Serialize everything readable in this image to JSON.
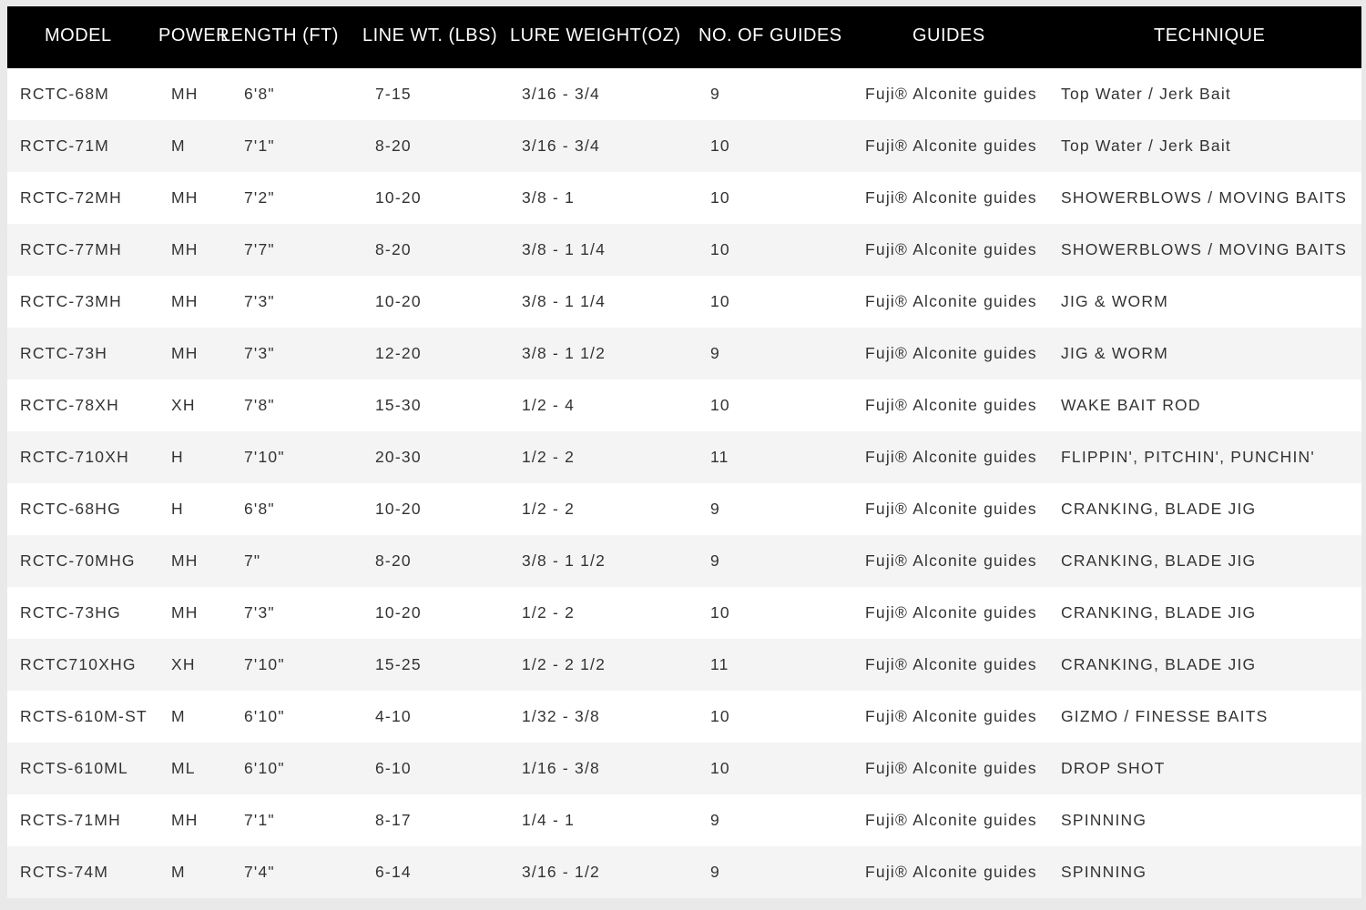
{
  "headers": [
    "MODEL",
    "POWER",
    "LENGTH (FT)",
    "LINE WT. (LBS)",
    "LURE WEIGHT(OZ)",
    "NO. OF GUIDES",
    "GUIDES",
    "TECHNIQUE"
  ],
  "rows": [
    [
      "RCTC-68M",
      "MH",
      "6'8\"",
      "7-15",
      "3/16 - 3/4",
      "9",
      "Fuji® Alconite guides",
      "Top Water / Jerk Bait"
    ],
    [
      "RCTC-71M",
      "M",
      "7'1\"",
      "8-20",
      "3/16 - 3/4",
      "10",
      "Fuji® Alconite guides",
      "Top Water / Jerk Bait"
    ],
    [
      "RCTC-72MH",
      "MH",
      "7'2\"",
      "10-20",
      "3/8 - 1",
      "10",
      "Fuji® Alconite guides",
      "SHOWERBLOWS / MOVING BAITS"
    ],
    [
      "RCTC-77MH",
      "MH",
      "7'7\"",
      "8-20",
      "3/8 - 1 1/4",
      "10",
      "Fuji® Alconite guides",
      "SHOWERBLOWS / MOVING BAITS"
    ],
    [
      "RCTC-73MH",
      "MH",
      "7'3\"",
      "10-20",
      "3/8 - 1 1/4",
      "10",
      "Fuji® Alconite guides",
      "JIG & WORM"
    ],
    [
      "RCTC-73H",
      "MH",
      "7'3\"",
      "12-20",
      "3/8 - 1 1/2",
      "9",
      "Fuji® Alconite guides",
      "JIG & WORM"
    ],
    [
      "RCTC-78XH",
      "XH",
      "7'8\"",
      "15-30",
      "1/2 - 4",
      "10",
      "Fuji® Alconite guides",
      "WAKE BAIT ROD"
    ],
    [
      "RCTC-710XH",
      "H",
      "7'10\"",
      "20-30",
      "1/2 - 2",
      "11",
      "Fuji® Alconite guides",
      "FLIPPIN', PITCHIN', PUNCHIN'"
    ],
    [
      "RCTC-68HG",
      "H",
      "6'8\"",
      "10-20",
      "1/2 - 2",
      "9",
      "Fuji® Alconite guides",
      "CRANKING, BLADE JIG"
    ],
    [
      "RCTC-70MHG",
      "MH",
      "7\"",
      "8-20",
      "3/8 - 1 1/2",
      "9",
      "Fuji® Alconite guides",
      "CRANKING, BLADE JIG"
    ],
    [
      "RCTC-73HG",
      "MH",
      "7'3\"",
      "10-20",
      "1/2 - 2",
      "10",
      "Fuji® Alconite guides",
      "CRANKING, BLADE JIG"
    ],
    [
      "RCTC710XHG",
      "XH",
      "7'10\"",
      "15-25",
      "1/2 - 2 1/2",
      "11",
      "Fuji® Alconite guides",
      "CRANKING, BLADE JIG"
    ],
    [
      "RCTS-610M-ST",
      "M",
      "6'10\"",
      "4-10",
      "1/32 - 3/8",
      "10",
      "Fuji® Alconite guides",
      "GIZMO / FINESSE BAITS"
    ],
    [
      "RCTS-610ML",
      "ML",
      "6'10\"",
      "6-10",
      "1/16 - 3/8",
      "10",
      "Fuji® Alconite guides",
      "DROP SHOT"
    ],
    [
      "RCTS-71MH",
      "MH",
      "7'1\"",
      "8-17",
      "1/4 - 1",
      "9",
      "Fuji® Alconite guides",
      "SPINNING"
    ],
    [
      "RCTS-74M",
      "M",
      "7'4\"",
      "6-14",
      "3/16 - 1/2",
      "9",
      "Fuji® Alconite guides",
      "SPINNING"
    ]
  ]
}
